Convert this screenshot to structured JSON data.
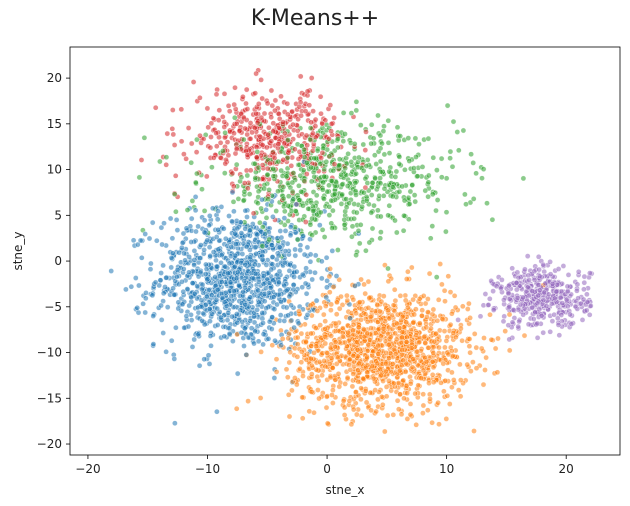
{
  "chart_data": {
    "type": "scatter",
    "title": "K-Means++",
    "xlabel": "stne_x",
    "ylabel": "stne_y",
    "xlim": [
      -21.5,
      24.5
    ],
    "ylim": [
      -21.2,
      23.4
    ],
    "xticks": [
      -20,
      -10,
      0,
      10,
      20
    ],
    "yticks": [
      -20,
      -15,
      -10,
      -5,
      0,
      5,
      10,
      15,
      20
    ],
    "xtick_labels": [
      "−20",
      "−10",
      "0",
      "10",
      "20"
    ],
    "ytick_labels": [
      "−20",
      "−15",
      "−10",
      "−5",
      "0",
      "5",
      "10",
      "15",
      "20"
    ],
    "grid": false,
    "legend": "none",
    "clusters": [
      {
        "color": "#1f77b4",
        "center": [
          -7.5,
          -2
        ],
        "spread": [
          4.5,
          5.0
        ],
        "count": 1100
      },
      {
        "color": "#ff7f0e",
        "center": [
          4.5,
          -9.5
        ],
        "spread": [
          5.0,
          4.2
        ],
        "count": 1300
      },
      {
        "color": "#2ca02c",
        "center": [
          0.5,
          8.5
        ],
        "spread": [
          7.0,
          4.0
        ],
        "count": 650
      },
      {
        "color": "#d62728",
        "center": [
          -5.0,
          13.5
        ],
        "spread": [
          4.2,
          3.5
        ],
        "count": 450
      },
      {
        "color": "#9467bd",
        "center": [
          18.0,
          -4.0
        ],
        "spread": [
          2.6,
          2.2
        ],
        "count": 420
      }
    ],
    "approximate_points_note": "Scatter of ~4000 points in 5 clustered groups; individual points approximated."
  }
}
